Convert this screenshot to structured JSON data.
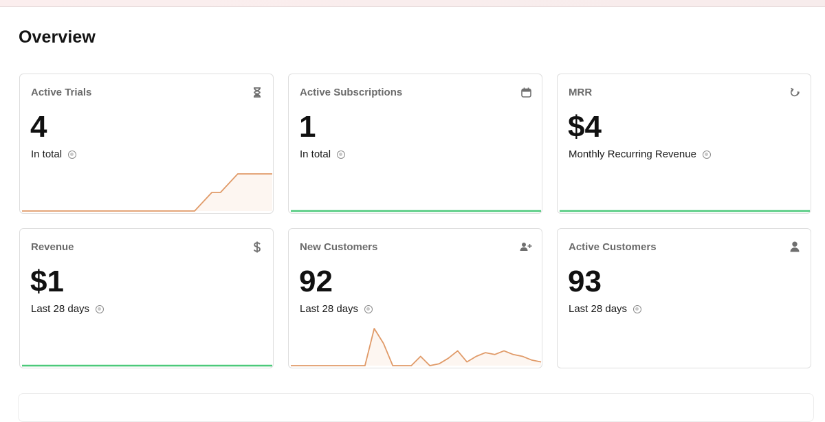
{
  "page": {
    "title": "Overview"
  },
  "cards": [
    {
      "title": "Active Trials",
      "value": "4",
      "subtitle": "In total",
      "icon": "hourglass-icon",
      "trend": [
        0,
        0,
        0,
        0,
        0,
        0,
        0,
        0,
        0,
        0,
        0,
        0,
        0,
        0,
        0,
        0,
        0,
        0,
        0,
        0,
        0,
        1,
        2,
        2,
        3,
        4,
        4,
        4,
        4,
        4
      ],
      "trend_max": 4,
      "trend_color": "#e09a68"
    },
    {
      "title": "Active Subscriptions",
      "value": "1",
      "subtitle": "In total",
      "icon": "calendar-icon",
      "trend": [
        0,
        0,
        0,
        0,
        0,
        0,
        0,
        0,
        0,
        0
      ],
      "trend_max": 1,
      "trend_color": "#4cc97a"
    },
    {
      "title": "MRR",
      "value": "$4",
      "subtitle": "Monthly Recurring Revenue",
      "icon": "refresh-icon",
      "trend": [
        0,
        0,
        0,
        0,
        0,
        0,
        0,
        0,
        0,
        0
      ],
      "trend_max": 1,
      "trend_color": "#4cc97a"
    },
    {
      "title": "Revenue",
      "value": "$1",
      "subtitle": "Last 28 days",
      "icon": "dollar-icon",
      "trend": [
        0,
        0,
        0,
        0,
        0,
        0,
        0,
        0,
        0,
        0
      ],
      "trend_max": 1,
      "trend_color": "#4cc97a"
    },
    {
      "title": "New Customers",
      "value": "92",
      "subtitle": "Last 28 days",
      "icon": "add-user-icon",
      "trend": [
        0,
        0,
        0,
        0,
        0,
        0,
        0,
        0,
        0,
        1,
        0.6,
        0,
        0,
        0,
        0.25,
        0,
        0.05,
        0.2,
        0.4,
        0.1,
        0.25,
        0.35,
        0.3,
        0.4,
        0.3,
        0.25,
        0.15,
        0.1
      ],
      "trend_max": 1,
      "trend_color": "#e09a68"
    },
    {
      "title": "Active Customers",
      "value": "93",
      "subtitle": "Last 28 days",
      "icon": "user-icon",
      "trend": [],
      "trend_max": 1,
      "trend_color": "#4cc97a"
    }
  ]
}
